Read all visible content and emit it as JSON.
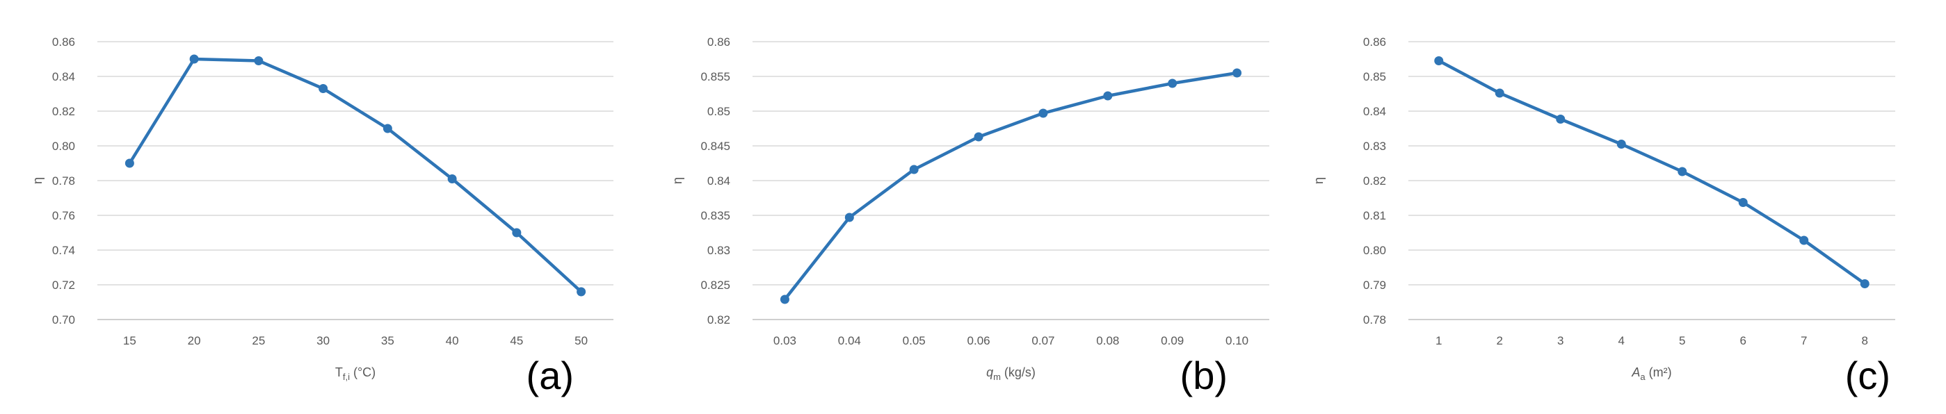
{
  "chart_data": [
    {
      "type": "line",
      "panel_label": "(a)",
      "xlabel": "T",
      "xlabel_sub": "f,i",
      "xlabel_unit": " (°C)",
      "ylabel": "η",
      "categories": [
        "15",
        "20",
        "25",
        "30",
        "35",
        "40",
        "45",
        "50"
      ],
      "values": [
        0.79,
        0.85,
        0.849,
        0.833,
        0.81,
        0.781,
        0.75,
        0.716
      ],
      "yticks": [
        "0.70",
        "0.72",
        "0.74",
        "0.76",
        "0.78",
        "0.80",
        "0.82",
        "0.84",
        "0.86"
      ],
      "ylim": [
        0.7,
        0.86
      ],
      "grid": true,
      "color": "#2e75b6"
    },
    {
      "type": "line",
      "panel_label": "(b)",
      "xlabel": "q",
      "xlabel_sub": "m",
      "xlabel_unit": " (kg/s)",
      "ylabel": "η",
      "categories": [
        "0.03",
        "0.04",
        "0.05",
        "0.06",
        "0.07",
        "0.08",
        "0.09",
        "0.10"
      ],
      "values": [
        0.8229,
        0.8347,
        0.8416,
        0.8463,
        0.8497,
        0.8522,
        0.854,
        0.8555
      ],
      "yticks": [
        "0.82",
        "0.825",
        "0.83",
        "0.835",
        "0.84",
        "0.845",
        "0.85",
        "0.855",
        "0.86"
      ],
      "ylim": [
        0.82,
        0.86
      ],
      "grid": true,
      "color": "#2e75b6"
    },
    {
      "type": "line",
      "panel_label": "(c)",
      "xlabel": "A",
      "xlabel_sub": "a",
      "xlabel_unit": " (m²)",
      "ylabel": "η",
      "categories": [
        "1",
        "2",
        "3",
        "4",
        "5",
        "6",
        "7",
        "8"
      ],
      "values": [
        0.8545,
        0.8452,
        0.8377,
        0.8305,
        0.8226,
        0.8137,
        0.8028,
        0.7903
      ],
      "yticks": [
        "0.78",
        "0.79",
        "0.80",
        "0.81",
        "0.82",
        "0.83",
        "0.84",
        "0.85",
        "0.86"
      ],
      "ylim": [
        0.78,
        0.86
      ],
      "grid": true,
      "color": "#2e75b6"
    }
  ]
}
